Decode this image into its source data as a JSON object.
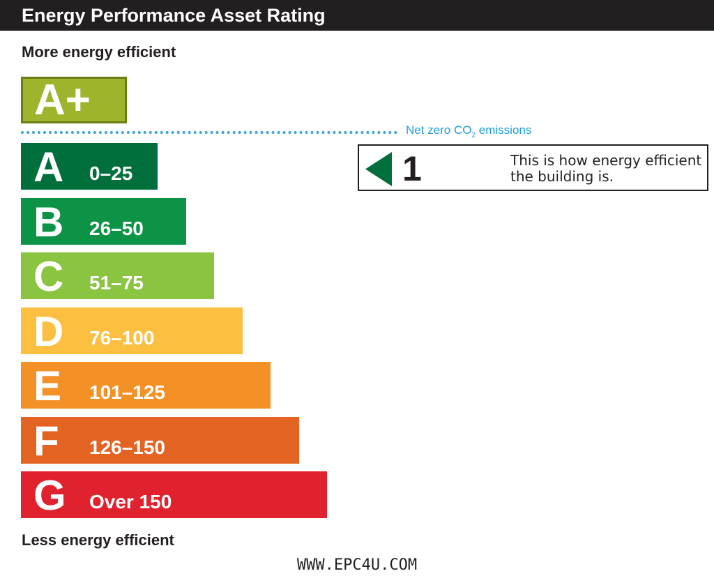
{
  "title": "Energy Performance Asset Rating",
  "top_label": "More energy efficient",
  "bottom_label": "Less energy efficient",
  "net_zero": {
    "text_before": "Net zero CO",
    "subscript": "2",
    "text_after": " emissions"
  },
  "footer": "WWW.EPC4U.COM",
  "indicator": {
    "rating": "1",
    "text": "This is how energy efficient the building is.",
    "color": "#006f3c"
  },
  "chart_data": {
    "type": "bar",
    "title": "Energy Performance Asset Rating",
    "orientation": "horizontal",
    "top_band": {
      "letter": "A+",
      "color": "#9db42c",
      "border": "#6e7a12"
    },
    "bands": [
      {
        "letter": "A",
        "range": "0–25",
        "color": "#006f3c"
      },
      {
        "letter": "B",
        "range": "26–50",
        "color": "#0d9345"
      },
      {
        "letter": "C",
        "range": "51–75",
        "color": "#8ac441"
      },
      {
        "letter": "D",
        "range": "76–100",
        "color": "#fcbf3f"
      },
      {
        "letter": "E",
        "range": "101–125",
        "color": "#f39127"
      },
      {
        "letter": "F",
        "range": "126–150",
        "color": "#e36322"
      },
      {
        "letter": "G",
        "range": "Over 150",
        "color": "#e0222f"
      }
    ],
    "current_rating": 1,
    "grid": false
  }
}
